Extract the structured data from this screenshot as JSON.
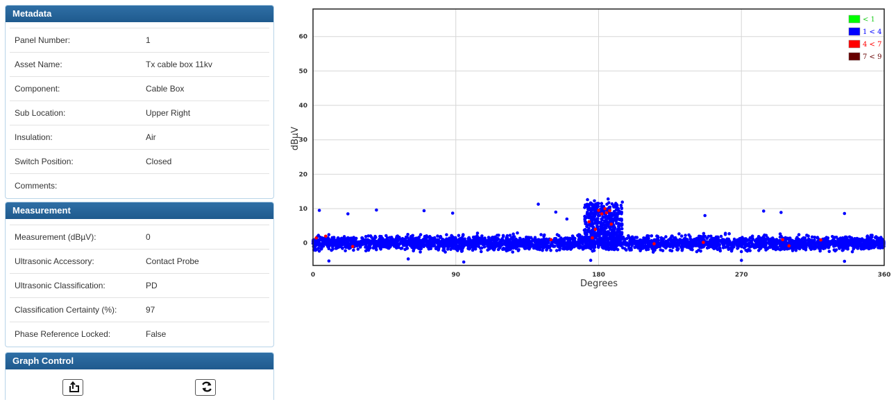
{
  "metadata": {
    "title": "Metadata",
    "rows": [
      {
        "label": "Panel Number:",
        "value": "1"
      },
      {
        "label": "Asset Name:",
        "value": "Tx cable box 11kv"
      },
      {
        "label": "Component:",
        "value": "Cable Box"
      },
      {
        "label": "Sub Location:",
        "value": "Upper Right"
      },
      {
        "label": "Insulation:",
        "value": "Air"
      },
      {
        "label": "Switch Position:",
        "value": "Closed"
      },
      {
        "label": "Comments:",
        "value": ""
      }
    ]
  },
  "measurement": {
    "title": "Measurement",
    "rows": [
      {
        "label": "Measurement (dBµV):",
        "value": "0"
      },
      {
        "label": "Ultrasonic Accessory:",
        "value": "Contact Probe"
      },
      {
        "label": "Ultrasonic Classification:",
        "value": "PD"
      },
      {
        "label": "Classification Certainty (%):",
        "value": "97"
      },
      {
        "label": "Phase Reference Locked:",
        "value": "False"
      }
    ]
  },
  "graph_control": {
    "title": "Graph Control",
    "buttons": [
      {
        "icon": "export-icon"
      },
      {
        "icon": "refresh-icon"
      }
    ]
  },
  "chart_data": {
    "type": "scatter",
    "xlabel": "Degrees",
    "ylabel": "dBµV",
    "xlim": [
      0,
      360
    ],
    "ylim": [
      -6.5,
      68
    ],
    "x_ticks": [
      "0",
      "90",
      "180",
      "270",
      "360"
    ],
    "y_ticks": [
      "0",
      "10",
      "20",
      "30",
      "40",
      "50",
      "60"
    ],
    "grid": true,
    "legend_position": "top-right",
    "legend": [
      {
        "label": "< 1",
        "color": "#00ff00"
      },
      {
        "label": "1 < 4",
        "color": "#0000ff"
      },
      {
        "label": "4 < 7",
        "color": "#ff0000"
      },
      {
        "label": "7 < 9",
        "color": "#660000"
      }
    ],
    "series": [
      {
        "legend_index": 1,
        "description": "dense noise band roughly -5 to 5 dBµV across 0–360°, with cluster up to ~12 dBµV near 170–195°",
        "sample_points": [
          [
            4,
            9.5
          ],
          [
            22,
            8.5
          ],
          [
            40,
            9.6
          ],
          [
            70,
            9.4
          ],
          [
            88,
            8.7
          ],
          [
            142,
            11.3
          ],
          [
            153,
            9
          ],
          [
            160,
            7
          ],
          [
            173,
            12.6
          ],
          [
            180,
            11.5
          ],
          [
            186,
            12.8
          ],
          [
            191,
            10.5
          ],
          [
            247,
            8
          ],
          [
            284,
            9.3
          ],
          [
            295,
            8.9
          ],
          [
            335,
            8.6
          ],
          [
            10,
            -5.2
          ],
          [
            60,
            -4.6
          ],
          [
            95,
            -5.5
          ],
          [
            175,
            -5
          ],
          [
            270,
            -5
          ],
          [
            335,
            -5.3
          ],
          [
            178,
            6
          ],
          [
            184,
            7.5
          ],
          [
            190,
            3
          ],
          [
            176,
            2
          ]
        ]
      },
      {
        "legend_index": 2,
        "description": "sparse higher-level points, concentrated near 175–190°",
        "points": [
          [
            2,
            1.5
          ],
          [
            8,
            2
          ],
          [
            25,
            -1
          ],
          [
            150,
            1
          ],
          [
            174,
            6.2
          ],
          [
            176,
            1.5
          ],
          [
            178,
            4
          ],
          [
            180,
            9.5
          ],
          [
            182,
            8.5
          ],
          [
            184,
            10
          ],
          [
            185,
            8.8
          ],
          [
            187,
            9.4
          ],
          [
            188,
            5.5
          ],
          [
            215,
            -0.2
          ],
          [
            246,
            0.2
          ],
          [
            296,
            1
          ],
          [
            300,
            -0.8
          ],
          [
            320,
            0.9
          ]
        ]
      }
    ]
  }
}
